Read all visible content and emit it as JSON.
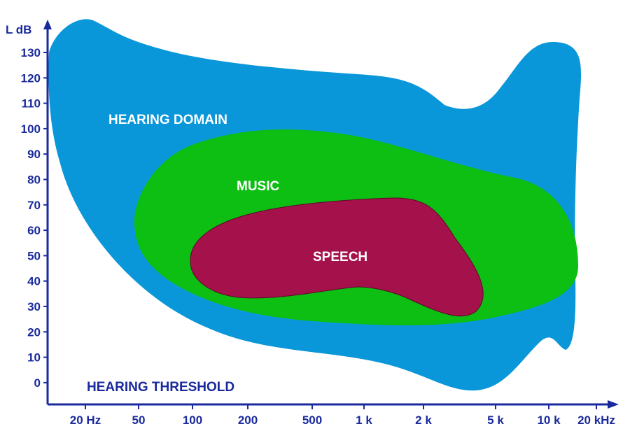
{
  "diagram": {
    "y_axis_title": "L dB",
    "y_ticks": [
      "130",
      "120",
      "110",
      "100",
      "90",
      "80",
      "70",
      "60",
      "50",
      "40",
      "30",
      "20",
      "10",
      "0"
    ],
    "x_ticks": [
      "20 Hz",
      "50",
      "100",
      "200",
      "500",
      "1 k",
      "2 k",
      "5 k",
      "10 k",
      "20 kHz"
    ],
    "regions": [
      {
        "label": "HEARING DOMAIN",
        "color": "#0a97d9"
      },
      {
        "label": "MUSIC",
        "color": "#0cbf12"
      },
      {
        "label": "SPEECH",
        "color": "#a5114a"
      }
    ],
    "threshold_label": "HEARING THRESHOLD",
    "axis_color": "#1a2a9c"
  }
}
